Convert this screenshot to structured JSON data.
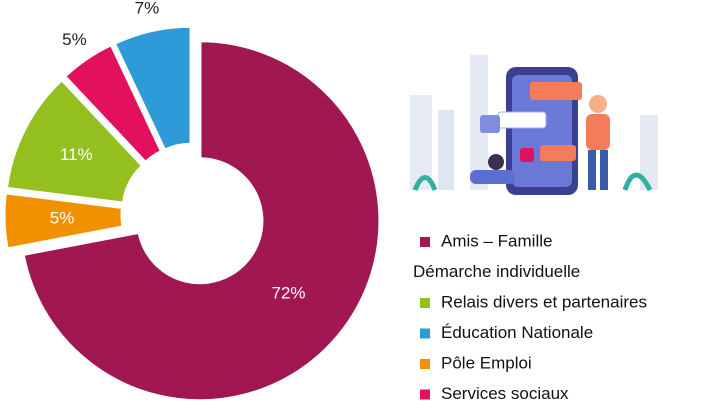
{
  "chart_data": {
    "type": "donut",
    "categories": [
      "Amis – Famille",
      "Pôle Emploi",
      "Relais divers et partenaires",
      "Services sociaux",
      "Éducation Nationale"
    ],
    "values": [
      72,
      5,
      11,
      5,
      7
    ],
    "value_labels": [
      "72%",
      "5%",
      "11%",
      "5%",
      "7%"
    ],
    "colors": [
      "#a01752",
      "#f29100",
      "#93c01f",
      "#e2105d",
      "#2f9ad8"
    ],
    "legend": [
      {
        "label": "Amis – Famille",
        "color": "#a01752"
      },
      {
        "label": "Démarche individuelle"
      },
      {
        "label": "Relais divers et partenaires",
        "color": "#93c01f"
      },
      {
        "label": "Éducation Nationale",
        "color": "#2f9ad8"
      },
      {
        "label": "Pôle Emploi",
        "color": "#f29100"
      },
      {
        "label": "Services sociaux",
        "color": "#e2105d"
      }
    ]
  }
}
